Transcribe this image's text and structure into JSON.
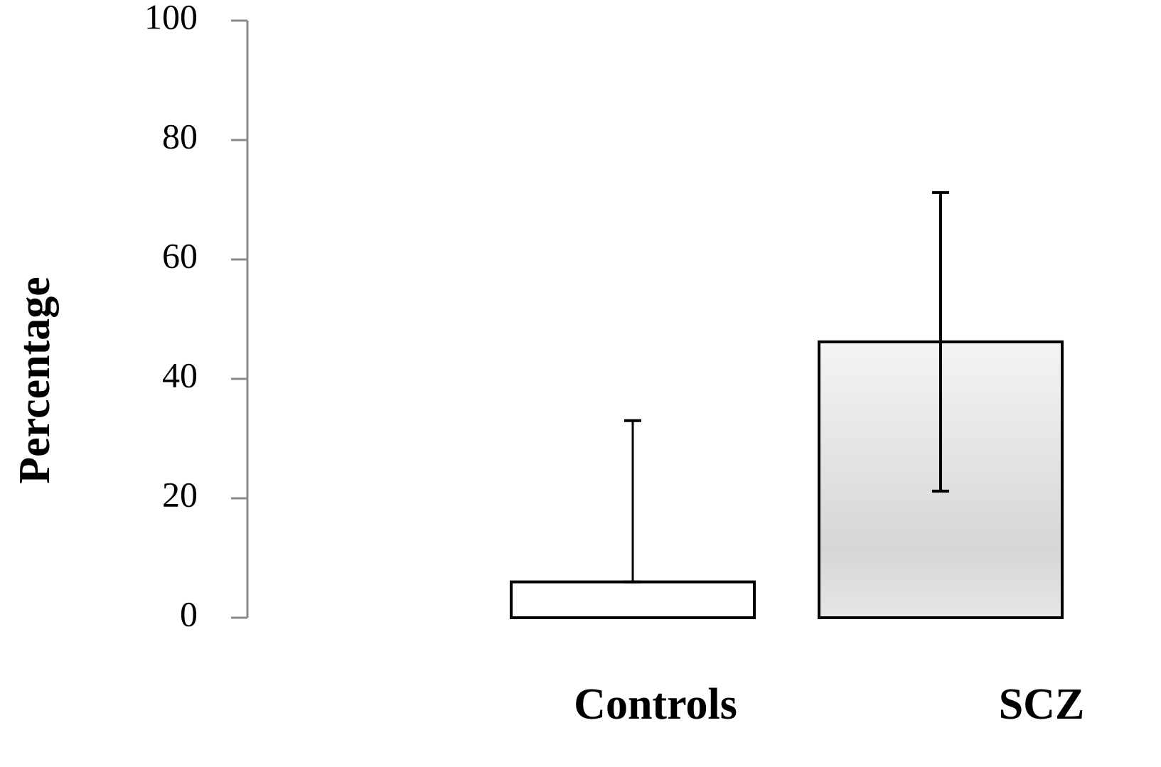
{
  "chart_data": {
    "type": "bar",
    "ylabel": "Percentage",
    "categories": [
      "Controls",
      "SCZ"
    ],
    "values": [
      6,
      46.2
    ],
    "errors": [
      27,
      25
    ],
    "colors": [
      "#ffffff",
      "#dddddd"
    ],
    "ylim": [
      0,
      100
    ],
    "yticks": [
      0,
      20,
      40,
      60,
      80,
      100
    ]
  }
}
